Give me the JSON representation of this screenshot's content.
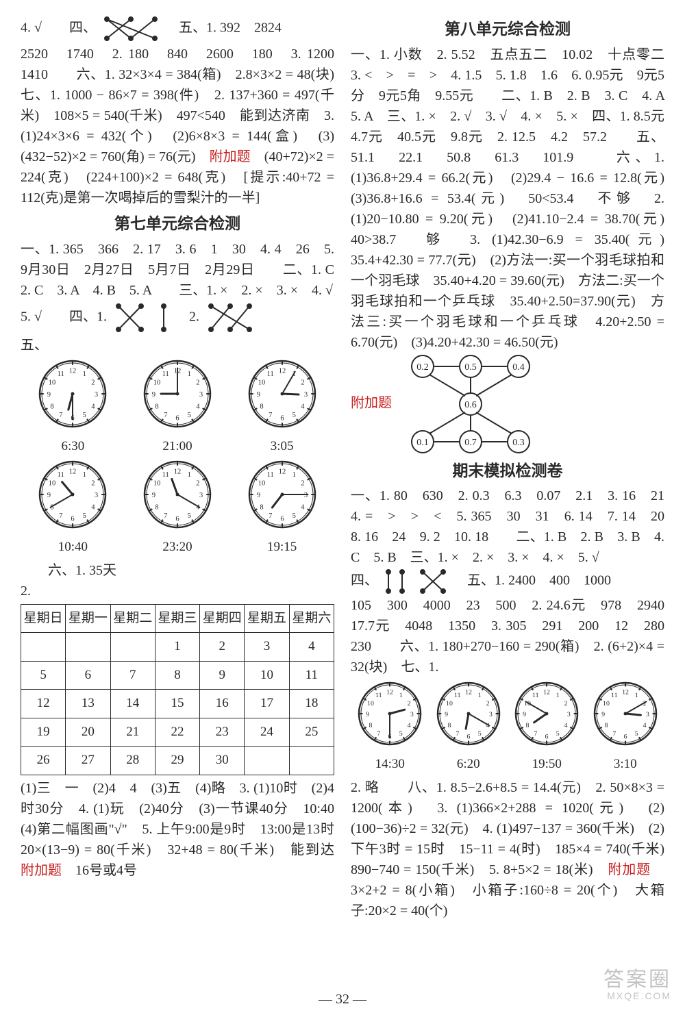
{
  "left": {
    "line1_a": "4. √　　四、",
    "line1_b": "　五、1. 392　2824",
    "p1": "2520　1740　2. 180　840　2600　180　3. 1200　1410　　六、1. 32×3×4 = 384(箱)　2.8×3×2 = 48(块)　七、1. 1000 − 86×7 = 398(件)　2. 137+360 = 497(千米)　108×5 = 540(千米)　497<540　能到达济南　3. (1)24×3×6 = 432(个)　(2)6×8×3 = 144(盒)　(3)(432−52)×2 = 760(角) = 76(元)　",
    "p1_red": "附加题",
    "p1_tail": "　(40+72)×2 = 224(克)　(224+100)×2 = 648(克)　[提示:40+72 = 112(克)是第一次喝掉后的雪梨汁的一半]",
    "title7": "第七单元综合检测",
    "p2": "一、1. 365　366　2. 17　3. 6　1　30　4. 4　26　5. 9月30日　2月27日　5月7日　2月29日　　二、1. C　2. C　3. A　4. B　5. A　　三、1. ×　2. ×　3. ×　4. √",
    "line3_a": "5. √　　四、1.",
    "line3_b": "　2.",
    "line4": "五、",
    "clock_labels1": [
      "6:30",
      "21:00",
      "3:05"
    ],
    "clock_labels2": [
      "10:40",
      "23:20",
      "19:15"
    ],
    "p3": "　　六、1. 35天",
    "p3b": "2.",
    "cal_head": [
      "星期日",
      "星期一",
      "星期二",
      "星期三",
      "星期四",
      "星期五",
      "星期六"
    ],
    "cal_rows": [
      [
        "",
        "",
        "",
        "1",
        "2",
        "3",
        "4"
      ],
      [
        "5",
        "6",
        "7",
        "8",
        "9",
        "10",
        "11"
      ],
      [
        "12",
        "13",
        "14",
        "15",
        "16",
        "17",
        "18"
      ],
      [
        "19",
        "20",
        "21",
        "22",
        "23",
        "24",
        "25"
      ],
      [
        "26",
        "27",
        "28",
        "29",
        "30",
        "",
        ""
      ]
    ],
    "p4": "(1)三　一　(2)4　4　(3)五　(4)略　3. (1)10时　(2)4时30分　4. (1)玩　(2)40分　(3)一节课40分　10:40　(4)第二幅图画\"√\"　5. 上午9:00是9时　13:00是13时　20×(13−9) = 80(千米)　32+48 = 80(千米)　能到达　",
    "p4_red": "附加题",
    "p4_tail": "　16号或4号"
  },
  "right": {
    "title8": "第八单元综合检测",
    "p1": "一、1. 小数　2. 5.52　五点五二　10.02　十点零二　3. <　>　=　>　4. 1.5　5. 1.8　1.6　6. 0.95元　9元5分　9元5角　9.55元　　二、1. B　2. B　3. C　4. A　5. A　三、1. ×　2. √　3. √　4. ×　5. ×　四、1. 8.5元　4.7元　40.5元　9.8元　2. 12.5　4.2　57.2　　五、51.1　22.1　50.8　61.3　101.9　　六、1. (1)36.8+29.4 = 66.2(元)　(2)29.4 − 16.6 = 12.8(元)　(3)36.8+16.6 = 53.4(元)　50<53.4　不够　2. (1)20−10.80 = 9.20(元)　(2)41.10−2.4 = 38.70(元)　40>38.7　够　3. (1)42.30−6.9 = 35.40(元)　35.4+42.30 = 77.7(元)　(2)方法一:买一个羽毛球拍和一个羽毛球　35.40+4.20 = 39.60(元)　方法二:买一个羽毛球拍和一个乒乓球　35.40+2.50=37.90(元)　方法三:买一个羽毛球和一个乒乓球　4.20+2.50 = 6.70(元)　(3)4.20+42.30 = 46.50(元)",
    "p1_red": "附加题",
    "graph_nodes": {
      "top": [
        "0.2",
        "0.5",
        "0.4"
      ],
      "mid": "0.6",
      "bot": [
        "0.1",
        "0.7",
        "0.3"
      ]
    },
    "title_final": "期末模拟检测卷",
    "p2a": "一、1. 80　630　2. 0.3　6.3　0.07　2.1　3. 16　21　4. =　>　>　<　5. 365　30　31　6. 14　7. 14　20　8. 16　24　9. 2　10. 18　　二、1. B　2. B　3. B　4. C　5. B　三、1. ×　2. ×　3. ×　4. ×　5. √",
    "line_d_a": "四、",
    "line_d_b": "　五、1. 2400　400　1000",
    "p2b": "105　300　4000　23　500　2. 24.6元　978　2940　17.7元　4048　1350　3. 305　291　200　12　280　230　　六、1. 180+270−160 = 290(箱)　2. (6+2)×4 = 32(块)　七、1.",
    "clock_labels": [
      "14:30",
      "6:20",
      "19:50",
      "3:10"
    ],
    "p3": "2. 略　　八、1. 8.5−2.6+8.5 = 14.4(元)　2. 50×8×3 = 1200(本)　3. (1)366×2+288 = 1020(元)　(2)(100−36)÷2 = 32(元)　4. (1)497−137 = 360(千米)　(2)下午3时 = 15时　15−11 = 4(时)　185×4 = 740(千米)　890−740 = 150(千米)　5. 8+5×2 = 18(米)　",
    "p3_red": "附加题",
    "p3_tail": "　3×2+2 = 8(小箱)　小箱子:160÷8 = 20(个)　大箱子:20×2 = 40(个)"
  },
  "page_num": "— 32 —",
  "watermark": {
    "l1": "答案圈",
    "l2": "MXQE.COM"
  },
  "colors": {
    "text": "#2a2a2a",
    "red": "#c81e1e",
    "bg": "#ffffff",
    "border": "#2a2a2a"
  },
  "clocks": {
    "left_row1": [
      {
        "h": 6,
        "m": 30
      },
      {
        "h": 21,
        "m": 0
      },
      {
        "h": 3,
        "m": 5
      }
    ],
    "left_row2": [
      {
        "h": 10,
        "m": 40
      },
      {
        "h": 23,
        "m": 20
      },
      {
        "h": 19,
        "m": 15
      }
    ],
    "right_row": [
      {
        "h": 14,
        "m": 30
      },
      {
        "h": 6,
        "m": 20
      },
      {
        "h": 19,
        "m": 50
      },
      {
        "h": 3,
        "m": 10
      }
    ],
    "radius": 48,
    "radius_small": 45
  }
}
